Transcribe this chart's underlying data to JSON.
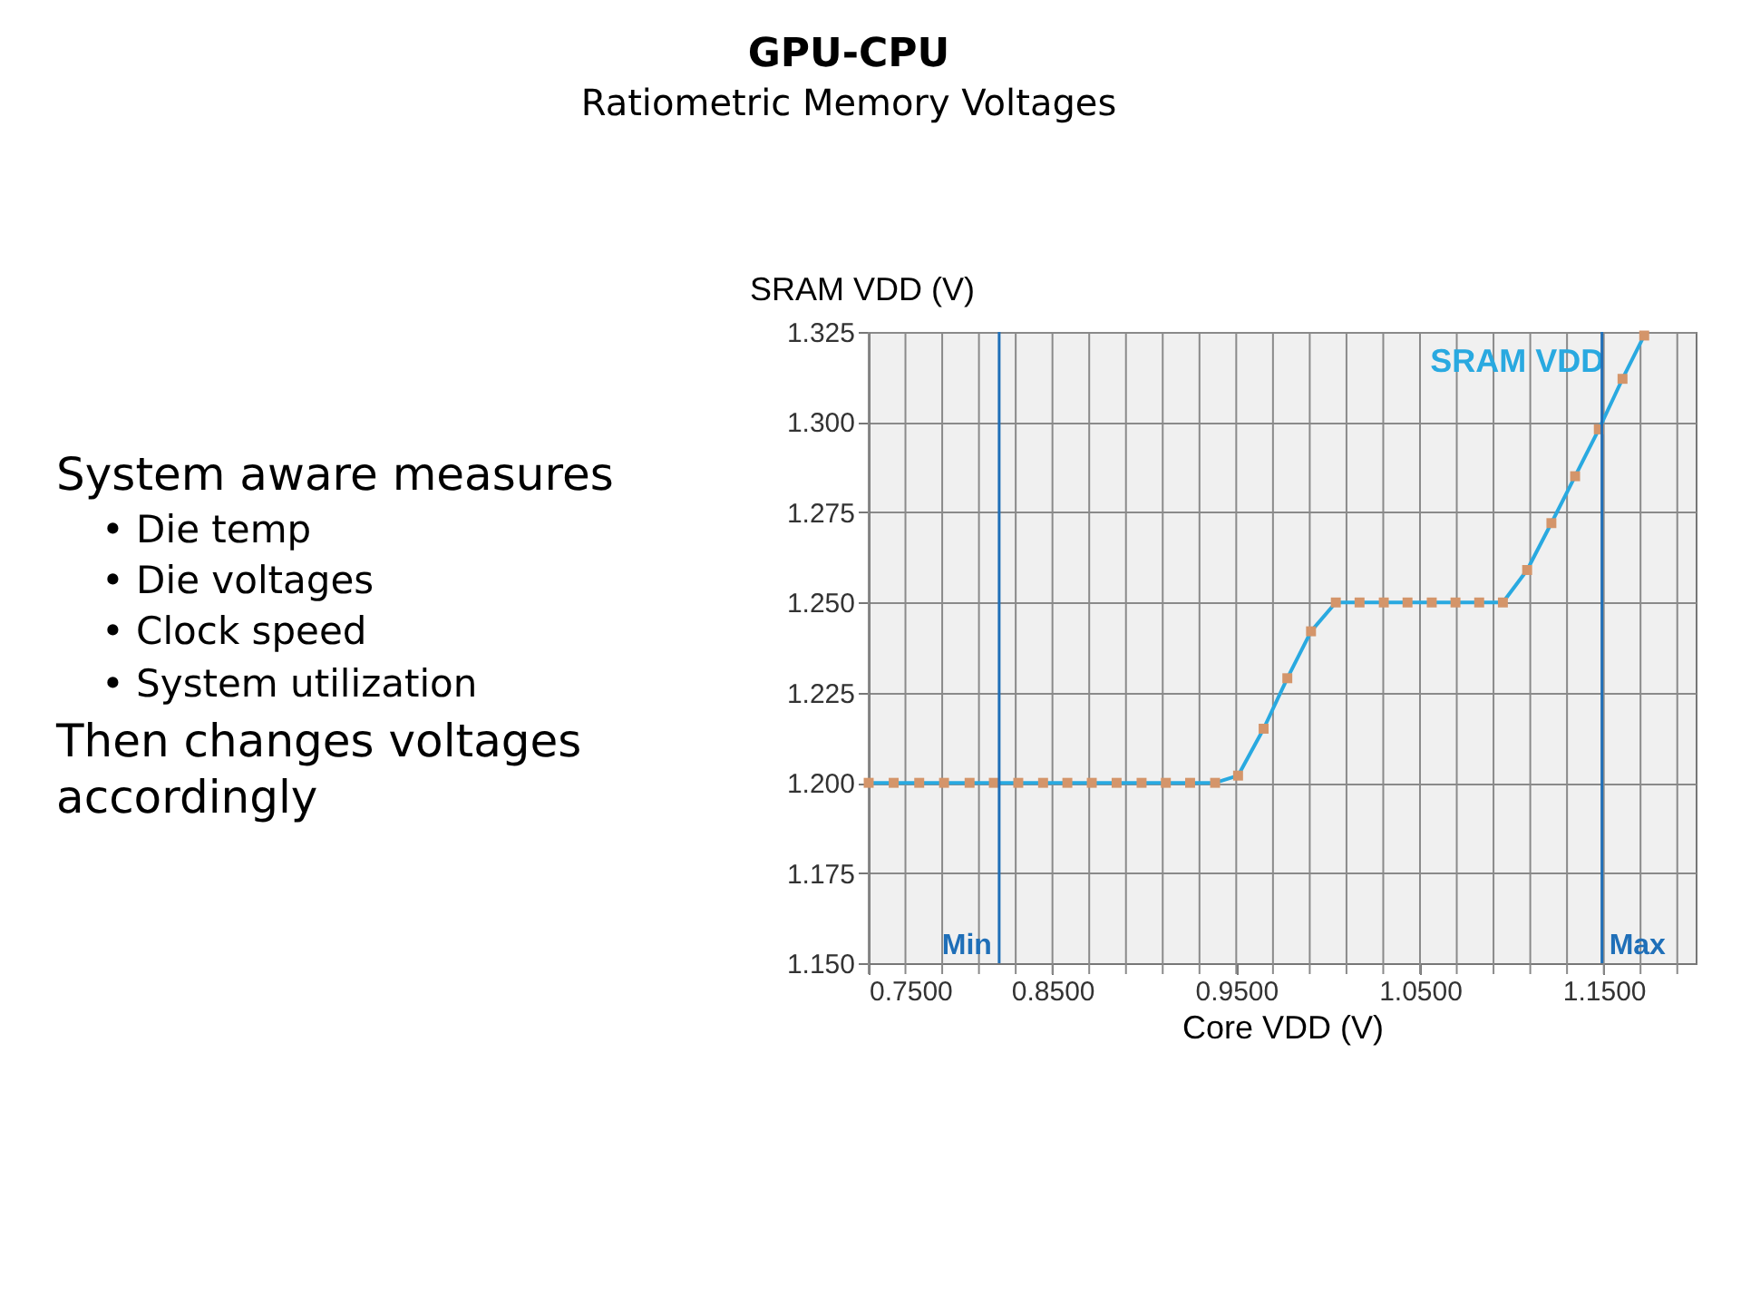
{
  "chart_data": {
    "type": "line",
    "title": "GPU-CPU",
    "subtitle": "Ratiometric Memory Voltages",
    "xlabel": "Core VDD (V)",
    "ylabel": "SRAM VDD (V)",
    "annotations": [
      "System aware measures",
      "•  Die temp",
      "•  Die voltages",
      "•  Clock speed",
      "•  System utilization",
      "Then changes voltages",
      "accordingly"
    ],
    "x": [
      0.75,
      0.7636,
      0.7775,
      0.791,
      0.8049,
      0.8181,
      0.8314,
      0.8449,
      0.8581,
      0.8714,
      0.8849,
      0.8985,
      0.9117,
      0.9249,
      0.9385,
      0.951,
      0.9649,
      0.9778,
      0.9907,
      1.0042,
      1.0171,
      1.0303,
      1.0432,
      1.0564,
      1.0693,
      1.0822,
      1.0951,
      1.1083,
      1.1215,
      1.1344,
      1.1473,
      1.1602,
      1.172
    ],
    "series": [
      {
        "name": "SRAM VDD",
        "color": "#29a9e0",
        "values": [
          1.2,
          1.2,
          1.2,
          1.2,
          1.2,
          1.2,
          1.2,
          1.2,
          1.2,
          1.2,
          1.2,
          1.2,
          1.2,
          1.2,
          1.2,
          1.202,
          1.215,
          1.229,
          1.242,
          1.25,
          1.25,
          1.25,
          1.25,
          1.25,
          1.25,
          1.25,
          1.25,
          1.259,
          1.272,
          1.285,
          1.298,
          1.312,
          1.324
        ]
      }
    ],
    "marker": "square",
    "line_style": "solid",
    "grid": true,
    "legend": false,
    "xlim": [
      0.75,
      1.2
    ],
    "ylim": [
      1.15,
      1.325
    ],
    "xticks": [
      {
        "value": 0.75,
        "label": "0.7500"
      },
      {
        "value": 0.77,
        "label": null
      },
      {
        "value": 0.79,
        "label": null
      },
      {
        "value": 0.81,
        "label": null
      },
      {
        "value": 0.83,
        "label": null
      },
      {
        "value": 0.85,
        "label": "0.8500"
      },
      {
        "value": 0.87,
        "label": null
      },
      {
        "value": 0.89,
        "label": null
      },
      {
        "value": 0.91,
        "label": null
      },
      {
        "value": 0.93,
        "label": null
      },
      {
        "value": 0.95,
        "label": "0.9500"
      },
      {
        "value": 0.97,
        "label": null
      },
      {
        "value": 0.99,
        "label": null
      },
      {
        "value": 1.01,
        "label": null
      },
      {
        "value": 1.03,
        "label": null
      },
      {
        "value": 1.05,
        "label": "1.0500"
      },
      {
        "value": 1.07,
        "label": null
      },
      {
        "value": 1.09,
        "label": null
      },
      {
        "value": 1.11,
        "label": null
      },
      {
        "value": 1.13,
        "label": null
      },
      {
        "value": 1.15,
        "label": "1.1500"
      },
      {
        "value": 1.17,
        "label": null
      },
      {
        "value": 1.19,
        "label": null
      }
    ],
    "yticks": [
      {
        "value": 1.15,
        "label": "1.150"
      },
      {
        "value": 1.175,
        "label": "1.175"
      },
      {
        "value": 1.2,
        "label": "1.200"
      },
      {
        "value": 1.225,
        "label": "1.225"
      },
      {
        "value": 1.25,
        "label": "1.250"
      },
      {
        "value": 1.275,
        "label": "1.275"
      },
      {
        "value": 1.3,
        "label": "1.300"
      },
      {
        "value": 1.325,
        "label": "1.325"
      }
    ],
    "ref_lines": [
      {
        "axis": "x",
        "value": 0.821,
        "label": "Min",
        "color": "#1f6fb8"
      },
      {
        "axis": "x",
        "value": 1.149,
        "label": "Max",
        "color": "#1f6fb8"
      }
    ]
  }
}
